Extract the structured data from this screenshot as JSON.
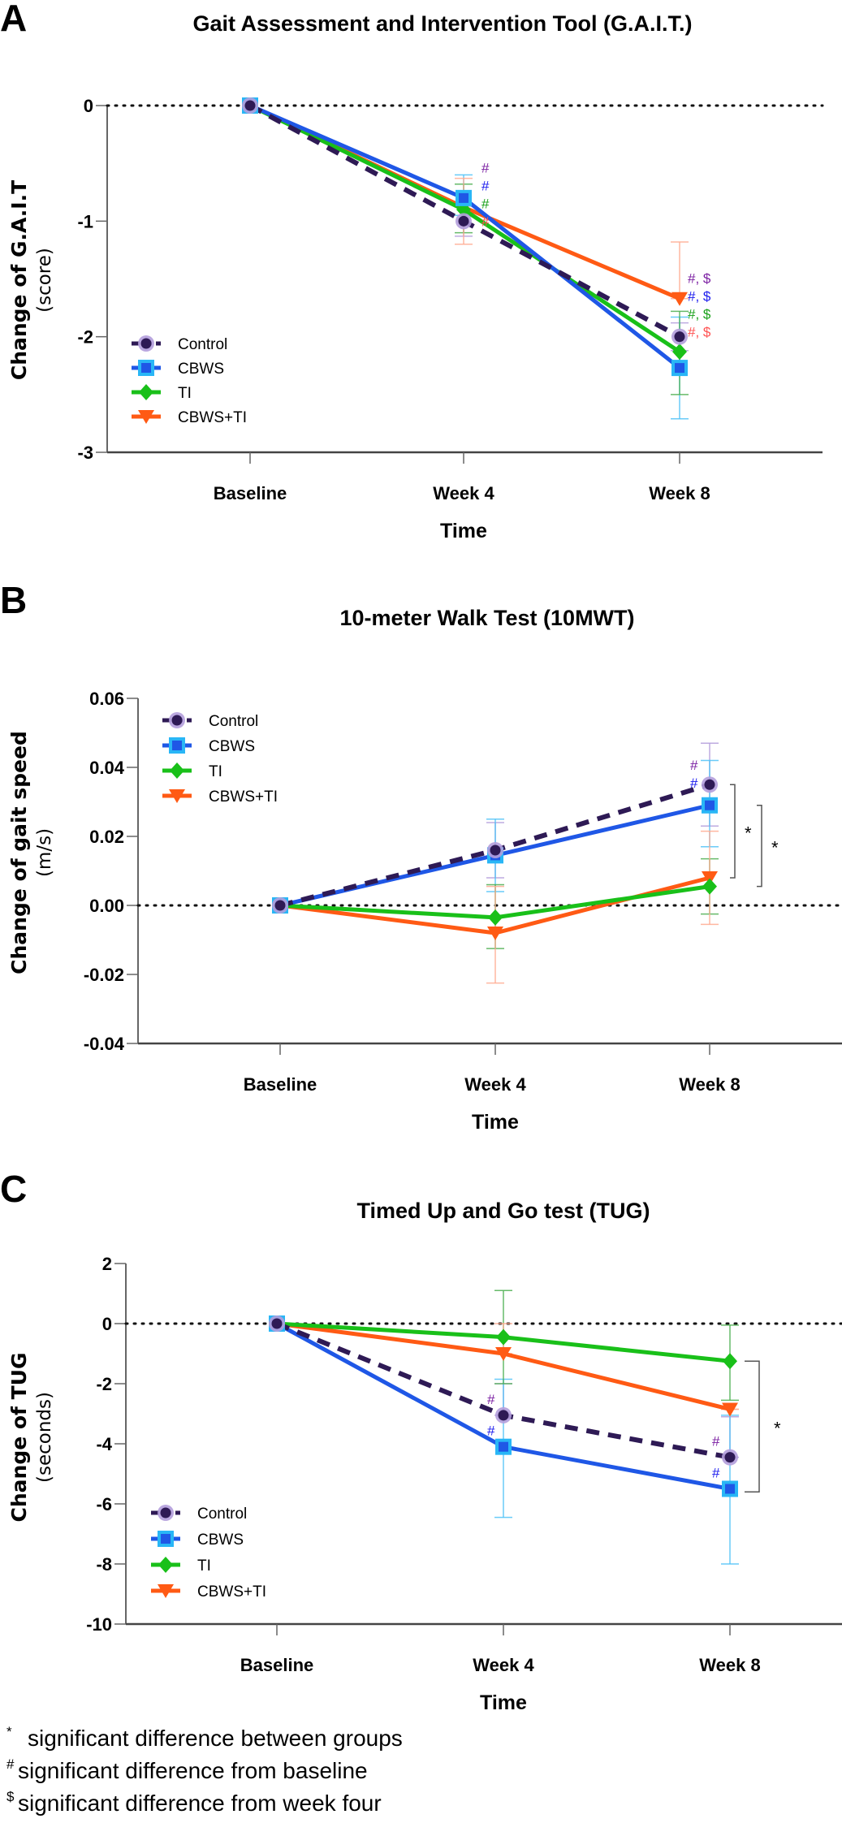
{
  "series_styles": {
    "Control": {
      "line": "#2e1a55",
      "marker": "circle",
      "marker_fill": "#2e1a55",
      "marker_edge": "#b39ddb",
      "dashed": true,
      "err": "#b39ddb",
      "ann_color": "#7b1fa2"
    },
    "CBWS": {
      "line": "#1f57e6",
      "marker": "square",
      "marker_fill": "#1f57e6",
      "marker_edge": "#29b6f6",
      "dashed": false,
      "err": "#4fc3f7",
      "ann_color": "#1a1aee"
    },
    "TI": {
      "line": "#19c019",
      "marker": "diamond",
      "marker_fill": "#19c019",
      "marker_edge": "#19c019",
      "dashed": false,
      "err": "#4caf50",
      "ann_color": "#18a018"
    },
    "CBWS+TI": {
      "line": "#ff5a14",
      "marker": "triangle-down",
      "marker_fill": "#ff5a14",
      "marker_edge": "#ff5a14",
      "dashed": false,
      "err": "#ffab91",
      "ann_color": "#ff5050"
    }
  },
  "chart_data": [
    {
      "panel": "A",
      "type": "line",
      "title": "Gait Assessment and Intervention Tool (G.A.I.T.)",
      "xlabel": "Time",
      "ylabel": "Change of G.A.I.T",
      "ylabel_unit": "(score)",
      "categories": [
        "Baseline",
        "Week 4",
        "Week 8"
      ],
      "ylim": [
        -3,
        0
      ],
      "yticks": [
        0,
        -1,
        -2,
        -3
      ],
      "ytick_labels": [
        "0",
        "-1",
        "-2",
        "-3"
      ],
      "reference_line": 0,
      "legend_position": "bottom-left",
      "series": [
        {
          "name": "Control",
          "values": [
            0,
            -1.0,
            -2.0
          ],
          "err_low": [
            0,
            -1.13,
            -2.12
          ],
          "err_high": [
            0,
            -0.87,
            -1.88
          ]
        },
        {
          "name": "CBWS",
          "values": [
            0,
            -0.8,
            -2.27
          ],
          "err_low": [
            0,
            -0.95,
            -2.71
          ],
          "err_high": [
            0,
            -0.6,
            -1.83
          ]
        },
        {
          "name": "TI",
          "values": [
            0,
            -0.9,
            -2.13
          ],
          "err_low": [
            0,
            -1.1,
            -2.5
          ],
          "err_high": [
            0,
            -0.68,
            -1.78
          ]
        },
        {
          "name": "CBWS+TI",
          "values": [
            0,
            -0.88,
            -1.67
          ],
          "err_low": [
            0,
            -1.2,
            -1.67
          ],
          "err_high": [
            0,
            -0.63,
            -1.18
          ]
        }
      ],
      "annotations": [
        {
          "category": "Week 4",
          "series": "Control",
          "text": "#"
        },
        {
          "category": "Week 4",
          "series": "CBWS",
          "text": "#"
        },
        {
          "category": "Week 4",
          "series": "TI",
          "text": "#"
        },
        {
          "category": "Week 4",
          "series": "CBWS+TI",
          "text": "#"
        },
        {
          "category": "Week 8",
          "series": "Control",
          "text": "#, $"
        },
        {
          "category": "Week 8",
          "series": "CBWS",
          "text": "#, $"
        },
        {
          "category": "Week 8",
          "series": "TI",
          "text": "#, $"
        },
        {
          "category": "Week 8",
          "series": "CBWS+TI",
          "text": "#, $"
        }
      ],
      "brackets": []
    },
    {
      "panel": "B",
      "type": "line",
      "title": "10-meter Walk Test (10MWT)",
      "xlabel": "Time",
      "ylabel": "Change of gait speed",
      "ylabel_unit": "(m/s)",
      "categories": [
        "Baseline",
        "Week 4",
        "Week 8"
      ],
      "ylim": [
        -0.04,
        0.06
      ],
      "yticks": [
        0.06,
        0.04,
        0.02,
        0.0,
        -0.02,
        -0.04
      ],
      "ytick_labels": [
        "0.06",
        "0.04",
        "0.02",
        "0.00",
        "-0.02",
        "-0.04"
      ],
      "reference_line": 0,
      "legend_position": "top-left",
      "series": [
        {
          "name": "Control",
          "values": [
            0,
            0.016,
            0.035
          ],
          "err_low": [
            0,
            0.008,
            0.023
          ],
          "err_high": [
            0,
            0.024,
            0.047
          ]
        },
        {
          "name": "CBWS",
          "values": [
            0,
            0.0145,
            0.029
          ],
          "err_low": [
            0,
            0.004,
            0.017
          ],
          "err_high": [
            0,
            0.025,
            0.042
          ]
        },
        {
          "name": "TI",
          "values": [
            0,
            -0.0035,
            0.0055
          ],
          "err_low": [
            0,
            -0.0125,
            -0.0025
          ],
          "err_high": [
            0,
            0.006,
            0.0135
          ]
        },
        {
          "name": "CBWS+TI",
          "values": [
            0,
            -0.008,
            0.008
          ],
          "err_low": [
            0,
            -0.0225,
            -0.0055
          ],
          "err_high": [
            0,
            0.0055,
            0.0215
          ]
        }
      ],
      "annotations": [
        {
          "category": "Week 8",
          "series": "Control",
          "text": "#"
        },
        {
          "category": "Week 8",
          "series": "CBWS",
          "text": "#"
        }
      ],
      "brackets": [
        {
          "from": 0.035,
          "to": 0.008,
          "label": "*"
        },
        {
          "from": 0.029,
          "to": 0.0055,
          "label": "*"
        }
      ]
    },
    {
      "panel": "C",
      "type": "line",
      "title": "Timed Up and Go test (TUG)",
      "xlabel": "Time",
      "ylabel": "Change of TUG",
      "ylabel_unit": "(seconds)",
      "categories": [
        "Baseline",
        "Week 4",
        "Week 8"
      ],
      "ylim": [
        -10,
        2
      ],
      "yticks": [
        2,
        0,
        -2,
        -4,
        -6,
        -8,
        -10
      ],
      "ytick_labels": [
        "2",
        "0",
        "-2",
        "-4",
        "-6",
        "-8",
        "-10"
      ],
      "reference_line": 0,
      "legend_position": "bottom-left",
      "series": [
        {
          "name": "Control",
          "values": [
            0,
            -3.05,
            -4.45
          ],
          "err_low": [
            0,
            -3.05,
            -4.45
          ],
          "err_high": [
            0,
            -2.0,
            -3.1
          ]
        },
        {
          "name": "CBWS",
          "values": [
            0,
            -4.1,
            -5.5
          ],
          "err_low": [
            0,
            -6.45,
            -8.0
          ],
          "err_high": [
            0,
            -1.85,
            -3.05
          ]
        },
        {
          "name": "TI",
          "values": [
            0,
            -0.45,
            -1.25
          ],
          "err_low": [
            0,
            -2.0,
            -2.55
          ],
          "err_high": [
            0,
            1.1,
            -0.05
          ]
        },
        {
          "name": "CBWS+TI",
          "values": [
            0,
            -1.0,
            -2.85
          ],
          "err_low": [
            0,
            -1.0,
            -2.85
          ],
          "err_high": [
            0,
            0.0,
            -2.85
          ]
        }
      ],
      "annotations": [
        {
          "category": "Week 4",
          "series": "Control",
          "text": "#"
        },
        {
          "category": "Week 4",
          "series": "CBWS",
          "text": "#"
        },
        {
          "category": "Week 8",
          "series": "Control",
          "text": "#"
        },
        {
          "category": "Week 8",
          "series": "CBWS",
          "text": "#"
        }
      ],
      "brackets": [
        {
          "from": -1.25,
          "to": -5.6,
          "label": "*"
        }
      ]
    }
  ],
  "footnotes": [
    {
      "symbol": "*",
      "text": "significant difference between groups"
    },
    {
      "symbol": "#",
      "text": "significant difference from baseline"
    },
    {
      "symbol": "$",
      "text": "significant difference from week four"
    }
  ]
}
